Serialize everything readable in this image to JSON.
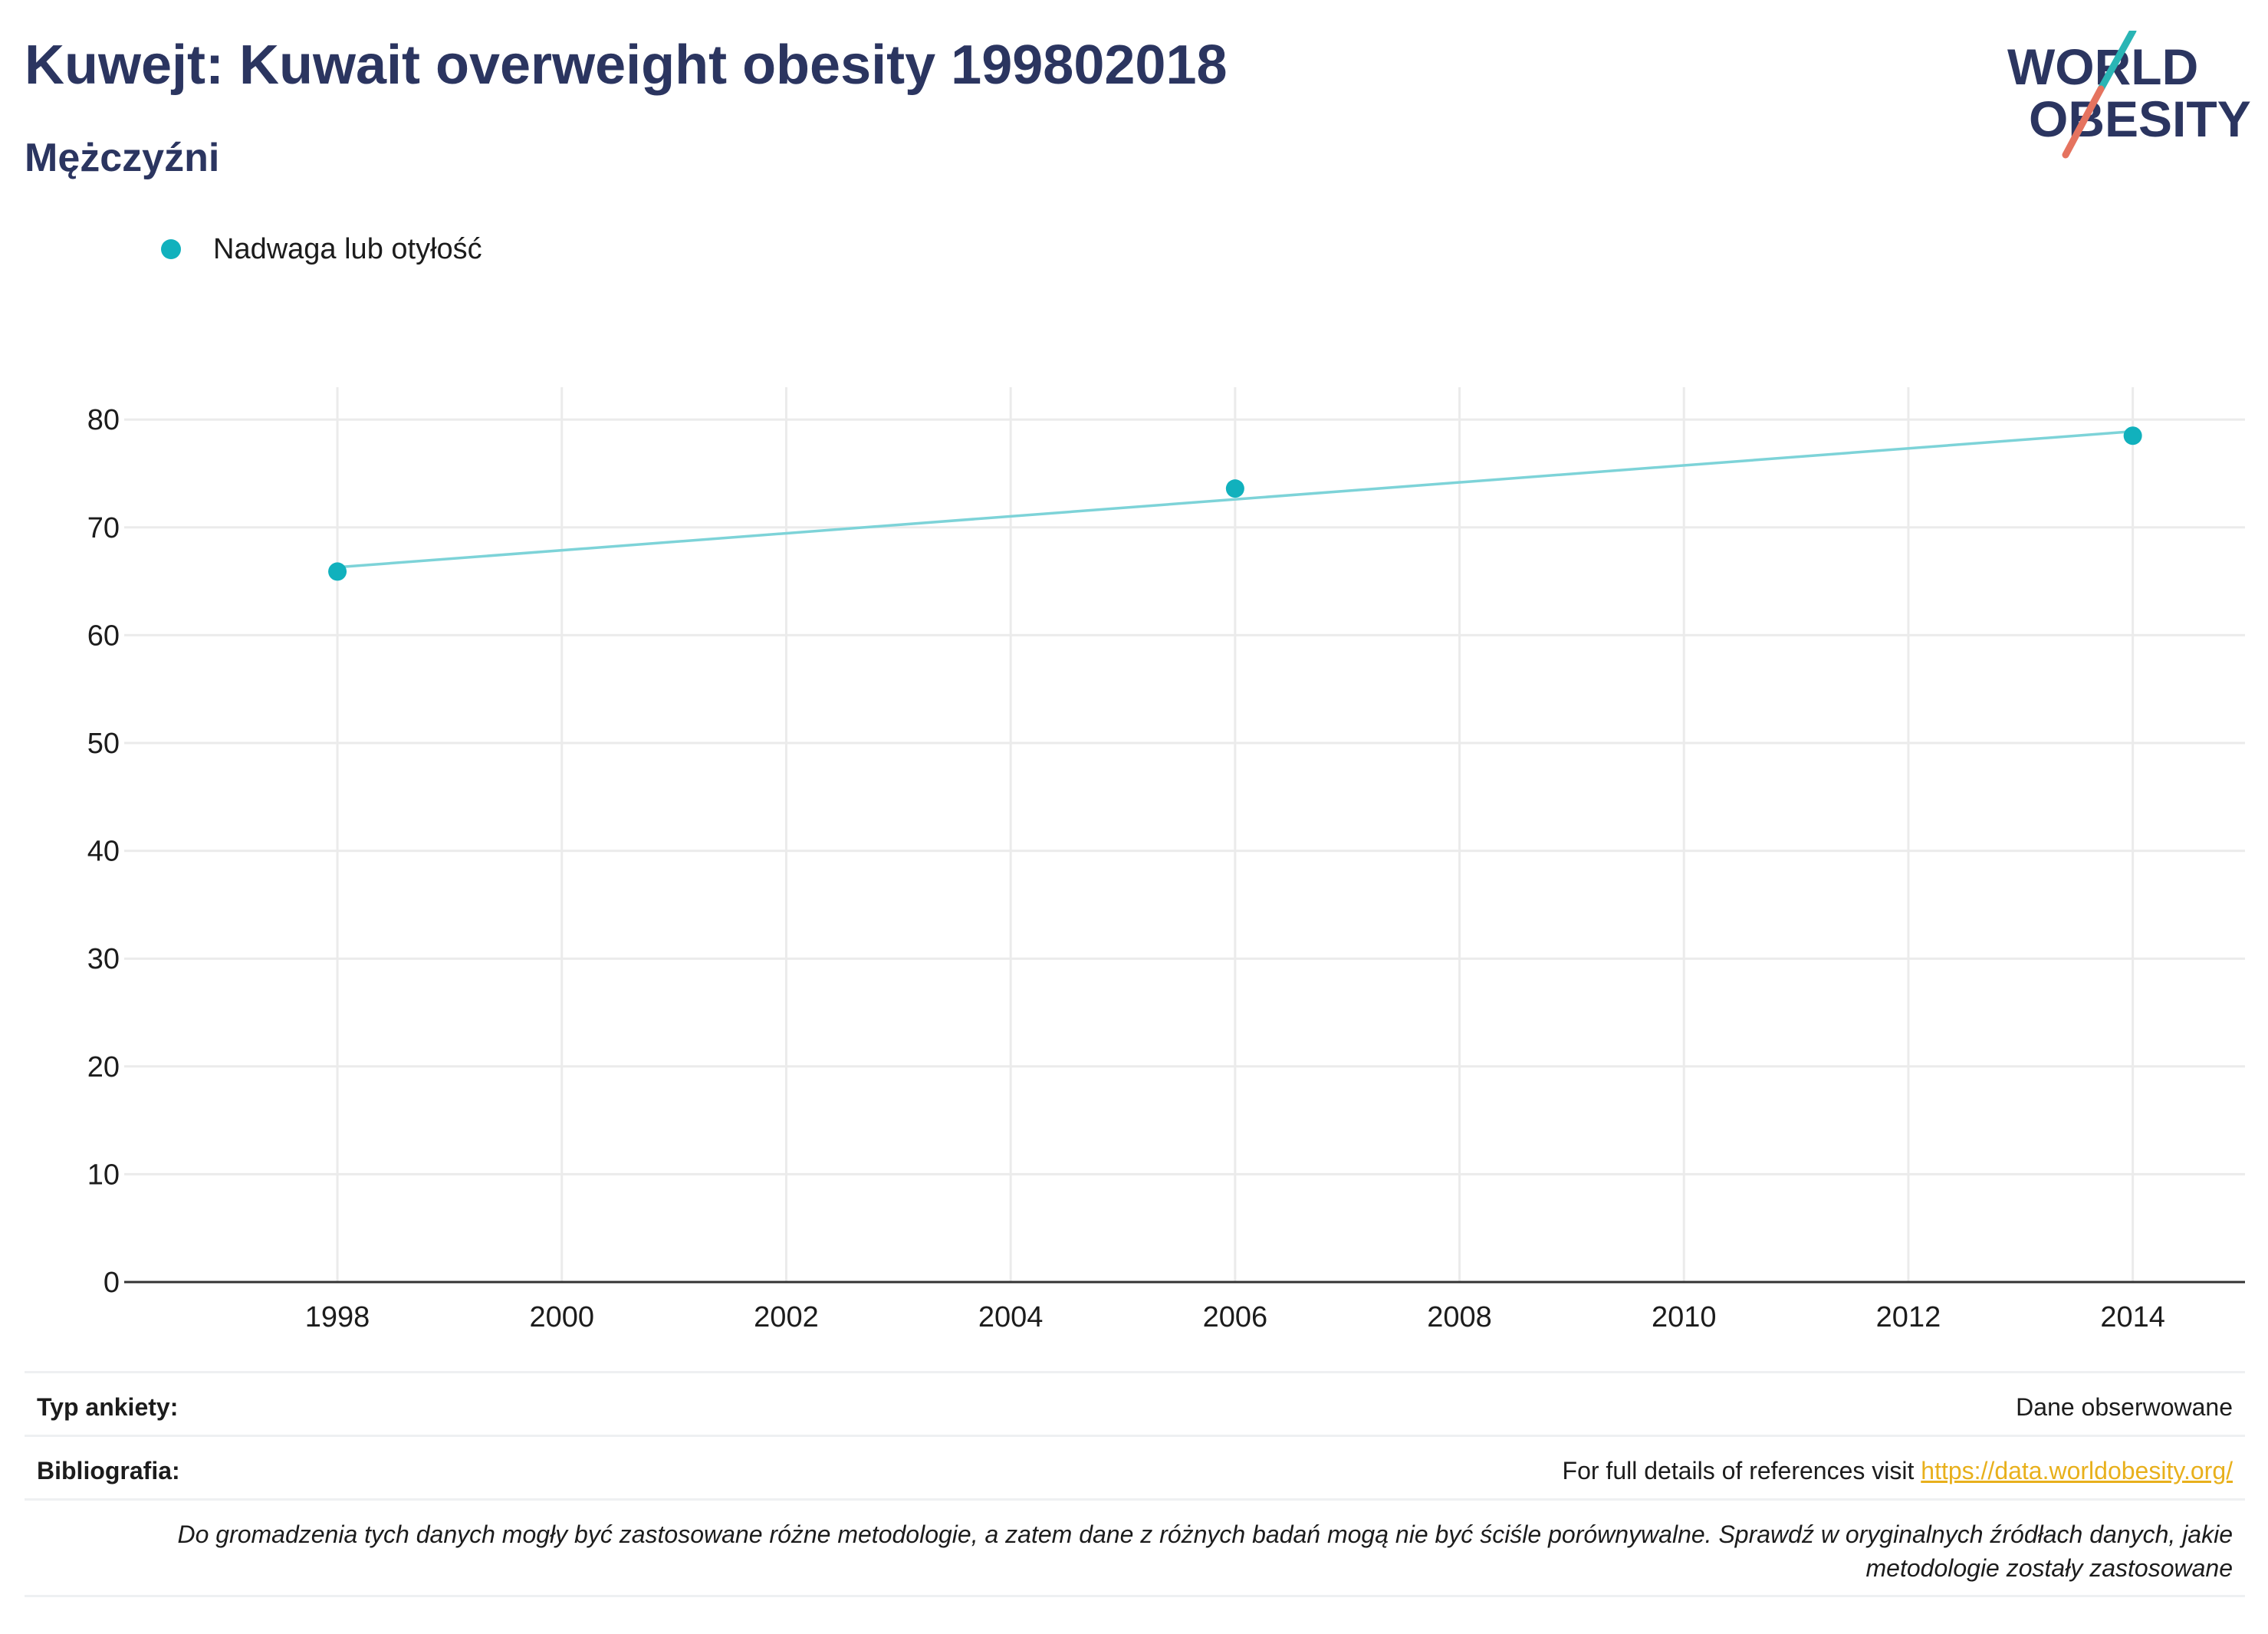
{
  "header": {
    "title": "Kuwejt: Kuwait overweight obesity 199802018",
    "subtitle": "Mężczyźni"
  },
  "logo": {
    "line1": "WORLD",
    "line2": "OBESITY",
    "colors": {
      "text": "#2b3560",
      "slash_teal": "#2ab5b5",
      "slash_coral": "#e5735f"
    }
  },
  "chart_data": {
    "type": "scatter",
    "x_ticks": [
      "1998",
      "2000",
      "2002",
      "2004",
      "2006",
      "2008",
      "2010",
      "2012",
      "2014"
    ],
    "y_ticks": [
      "0",
      "10",
      "20",
      "30",
      "40",
      "50",
      "60",
      "70",
      "80"
    ],
    "xlim": [
      1996.1,
      2015.0
    ],
    "ylim": [
      0,
      83
    ],
    "grid": true,
    "legend_position": "top-left",
    "series": [
      {
        "name": "Nadwaga lub otyłość",
        "color": "#11b1bd",
        "points": [
          {
            "x": 1998,
            "y": 65.9
          },
          {
            "x": 2006,
            "y": 73.6
          },
          {
            "x": 2014,
            "y": 78.5
          }
        ]
      }
    ],
    "trend_line": {
      "color": "#7dd3d8",
      "points": [
        {
          "x": 1998,
          "y": 66.3
        },
        {
          "x": 2014,
          "y": 78.9
        }
      ]
    }
  },
  "footer": {
    "survey_label": "Typ ankiety:",
    "survey_value": "Dane obserwowane",
    "bib_label": "Bibliografia:",
    "bib_text": "For full details of references visit ",
    "bib_link": "https://data.worldobesity.org/",
    "note": "Do gromadzenia tych danych mogły być zastosowane różne metodologie, a zatem dane z różnych badań mogą nie być ściśle porównywalne. Sprawdź w oryginalnych źródłach danych, jakie metodologie zostały zastosowane"
  }
}
